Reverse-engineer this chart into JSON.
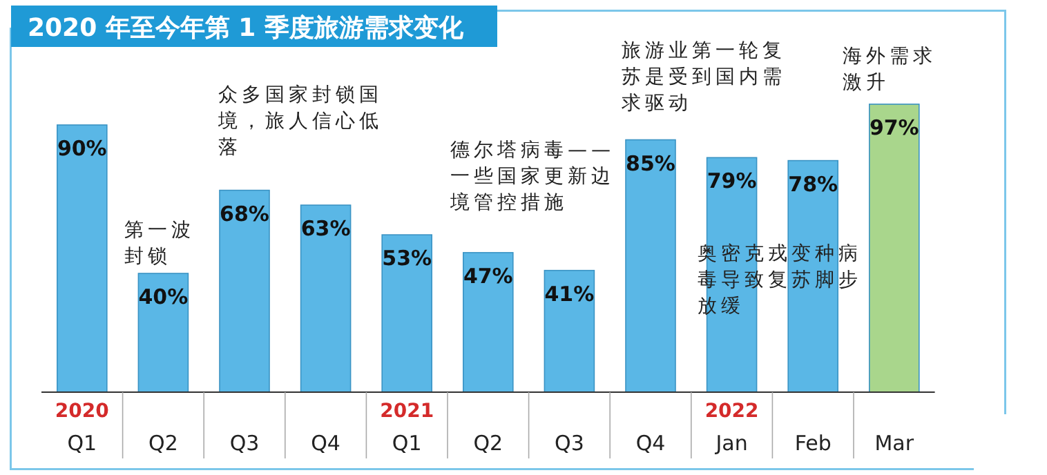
{
  "chart_data": {
    "type": "bar",
    "title": "2020 年至今年第 1 季度旅游需求变化",
    "categories": [
      "2020\nQ1",
      "Q2",
      "Q3",
      "Q4",
      "2021\nQ1",
      "Q2",
      "Q3",
      "Q4",
      "2022\nJan",
      "Feb",
      "Mar"
    ],
    "values": [
      90,
      40,
      68,
      63,
      53,
      47,
      41,
      85,
      79,
      78,
      97
    ],
    "colors": [
      "#5ab7e6",
      "#5ab7e6",
      "#5ab7e6",
      "#5ab7e6",
      "#5ab7e6",
      "#5ab7e6",
      "#5ab7e6",
      "#5ab7e6",
      "#5ab7e6",
      "#5ab7e6",
      "#a9d68c"
    ],
    "value_labels": [
      "90%",
      "40%",
      "68%",
      "63%",
      "53%",
      "47%",
      "41%",
      "85%",
      "79%",
      "78%",
      "97%"
    ],
    "annotations": [
      "第一波封锁",
      "众多国家封锁国境，旅人信心低落",
      "德尔塔病毒——一些国家更新边境管控措施",
      "旅游业第一轮复苏是受到国内需求驱动",
      "奥密克戎变种病毒导致复苏脚步放缓",
      "海外需求激升"
    ]
  }
}
